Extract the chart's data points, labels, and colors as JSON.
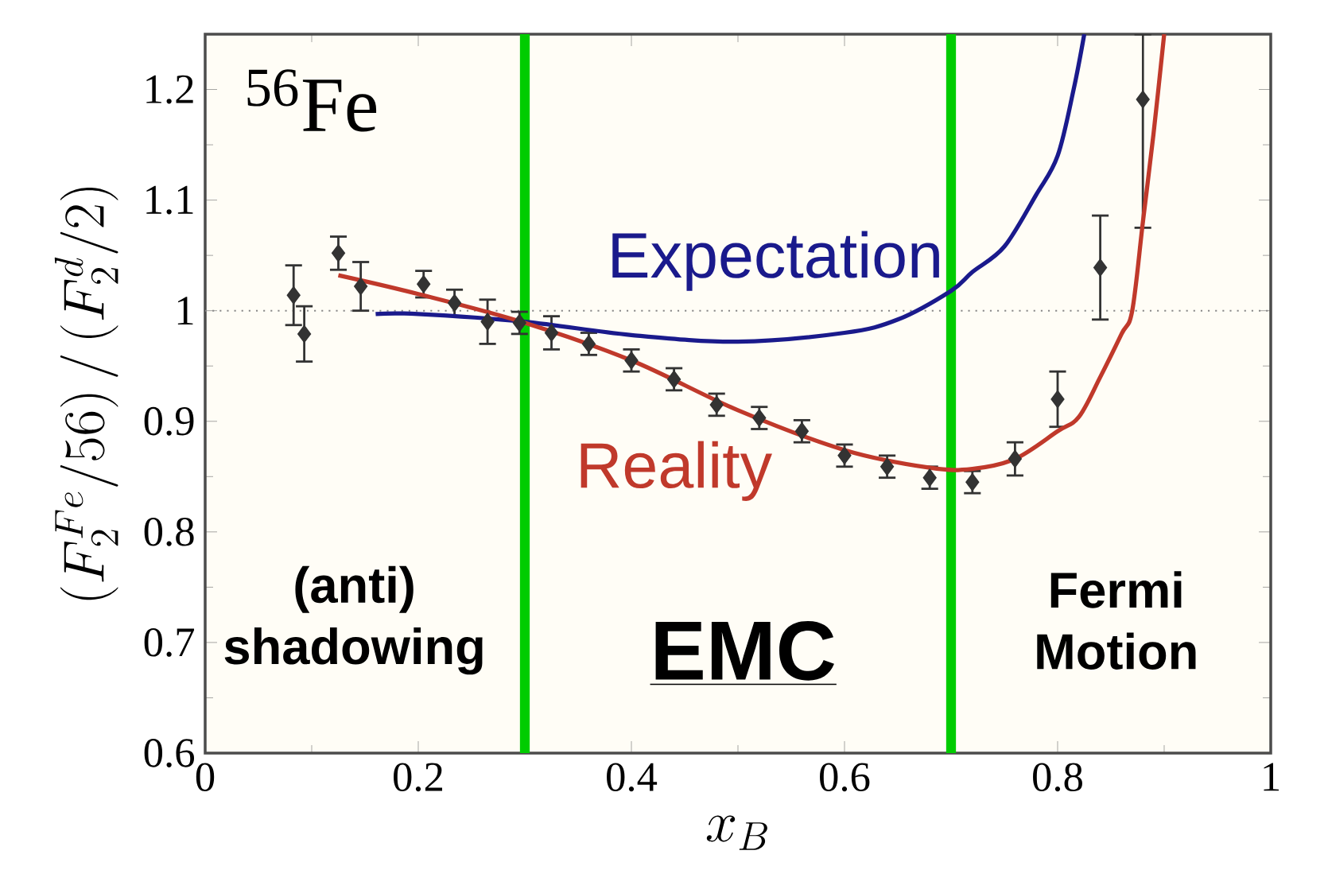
{
  "chart_data": {
    "type": "scatter",
    "xlabel": "x_B",
    "ylabel": "(F_2^{Fe}/56)\\,/\\,(F_2^d/2)",
    "xlim": [
      0,
      1
    ],
    "ylim": [
      0.6,
      1.25
    ],
    "xticks": [
      0,
      0.2,
      0.4,
      0.6,
      0.8,
      1
    ],
    "yticks": [
      0.6,
      0.7,
      0.8,
      0.9,
      1,
      1.1,
      1.2
    ],
    "grid": false,
    "legend": false,
    "series": [
      {
        "color": "#333333",
        "marker": "diamond",
        "x": [
          0.083,
          0.093,
          0.125,
          0.146,
          0.205,
          0.234,
          0.265,
          0.295,
          0.325,
          0.36,
          0.4,
          0.44,
          0.48,
          0.52,
          0.56,
          0.6,
          0.64,
          0.68,
          0.72,
          0.76,
          0.8,
          0.84,
          0.88
        ],
        "values": [
          1.014,
          0.979,
          1.052,
          1.022,
          1.024,
          1.007,
          0.99,
          0.989,
          0.98,
          0.97,
          0.955,
          0.938,
          0.915,
          0.903,
          0.891,
          0.869,
          0.859,
          0.849,
          0.845,
          0.866,
          0.92,
          1.039,
          1.191
        ],
        "errors": [
          0.027,
          0.025,
          0.015,
          0.022,
          0.012,
          0.012,
          0.02,
          0.01,
          0.015,
          0.01,
          0.01,
          0.01,
          0.01,
          0.01,
          0.01,
          0.01,
          0.01,
          0.01,
          0.01,
          0.015,
          0.025,
          0.047,
          [
            1.075,
            1.25
          ]
        ]
      },
      {
        "type": "line",
        "name": "Expectation",
        "color": "#1a1a8c",
        "marker": "none",
        "x": [
          0.16,
          0.2,
          0.3,
          0.4,
          0.5,
          0.6,
          0.65,
          0.7,
          0.72,
          0.75,
          0.78,
          0.8,
          0.815,
          0.825
        ],
        "values": [
          0.997,
          0.997,
          0.99,
          0.978,
          0.972,
          0.98,
          0.992,
          1.018,
          1.035,
          1.058,
          1.105,
          1.14,
          1.2,
          1.25
        ]
      },
      {
        "type": "line",
        "name": "Reality",
        "color": "#c0392b",
        "marker": "none",
        "x": [
          0.125,
          0.2,
          0.3,
          0.4,
          0.5,
          0.6,
          0.68,
          0.72,
          0.76,
          0.8,
          0.82,
          0.84,
          0.86,
          0.87,
          0.88,
          0.89,
          0.9
        ],
        "values": [
          1.032,
          1.015,
          0.989,
          0.955,
          0.91,
          0.874,
          0.858,
          0.857,
          0.866,
          0.891,
          0.904,
          0.94,
          0.979,
          1.0,
          1.08,
          1.16,
          1.25
        ]
      }
    ],
    "ref_lines": [
      {
        "axis": "y",
        "value": 1,
        "color": "#888888",
        "line_style": "dotted"
      },
      {
        "axis": "x",
        "value": 0.3,
        "color": "#00cc00",
        "line_style": "solid"
      },
      {
        "axis": "x",
        "value": 0.7,
        "color": "#00cc00",
        "line_style": "solid"
      }
    ],
    "annotations": [
      "$^{56}$Fe",
      "(anti) shadowing",
      "EMC",
      "Fermi Motion"
    ]
  }
}
